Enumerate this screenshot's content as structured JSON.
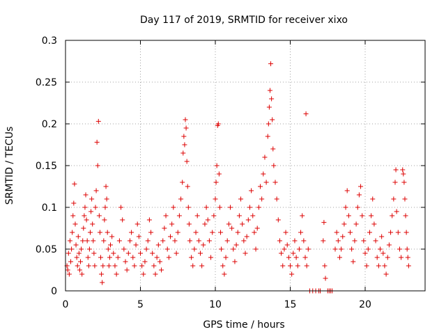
{
  "chart_data": {
    "type": "scatter",
    "title": "Day 117 of 2019, SRMTID for receiver xixo",
    "xlabel": "GPS time / hours",
    "ylabel": "SRMTID / TECUs",
    "xlim": [
      0,
      24
    ],
    "ylim": [
      0,
      0.3
    ],
    "x_ticks": [
      0,
      5,
      10,
      15,
      20
    ],
    "x_tick_labels": [
      "0",
      "5",
      "10",
      "15",
      "20"
    ],
    "y_ticks": [
      0,
      0.05,
      0.1,
      0.15,
      0.2,
      0.25,
      0.3
    ],
    "y_tick_labels": [
      "0",
      "0.05",
      "0.1",
      "0.15",
      "0.2",
      "0.25",
      "0.3"
    ],
    "grid": true,
    "marker": "+",
    "color": "#dd0000",
    "series": [
      {
        "name": "SRMTID",
        "points": [
          [
            0.1,
            0.03
          ],
          [
            0.15,
            0.025
          ],
          [
            0.2,
            0.045
          ],
          [
            0.25,
            0.02
          ],
          [
            0.3,
            0.06
          ],
          [
            0.35,
            0.035
          ],
          [
            0.4,
            0.05
          ],
          [
            0.45,
            0.07
          ],
          [
            0.5,
            0.09
          ],
          [
            0.55,
            0.105
          ],
          [
            0.6,
            0.128
          ],
          [
            0.65,
            0.08
          ],
          [
            0.7,
            0.055
          ],
          [
            0.75,
            0.04
          ],
          [
            0.8,
            0.03
          ],
          [
            0.85,
            0.065
          ],
          [
            0.9,
            0.045
          ],
          [
            0.95,
            0.025
          ],
          [
            1.0,
            0.035
          ],
          [
            1.05,
            0.05
          ],
          [
            1.1,
            0.02
          ],
          [
            1.15,
            0.06
          ],
          [
            1.2,
            0.075
          ],
          [
            1.25,
            0.09
          ],
          [
            1.3,
            0.1
          ],
          [
            1.35,
            0.115
          ],
          [
            1.4,
            0.085
          ],
          [
            1.45,
            0.06
          ],
          [
            1.5,
            0.04
          ],
          [
            1.55,
            0.03
          ],
          [
            1.6,
            0.05
          ],
          [
            1.65,
            0.07
          ],
          [
            1.7,
            0.095
          ],
          [
            1.75,
            0.11
          ],
          [
            1.8,
            0.08
          ],
          [
            1.85,
            0.06
          ],
          [
            1.9,
            0.045
          ],
          [
            1.95,
            0.03
          ],
          [
            2.0,
            0.1
          ],
          [
            2.05,
            0.12
          ],
          [
            2.1,
            0.178
          ],
          [
            2.15,
            0.15
          ],
          [
            2.2,
            0.203
          ],
          [
            2.25,
            0.09
          ],
          [
            2.3,
            0.07
          ],
          [
            2.35,
            0.04
          ],
          [
            2.4,
            0.02
          ],
          [
            2.45,
            0.01
          ],
          [
            2.5,
            0.03
          ],
          [
            2.55,
            0.06
          ],
          [
            2.6,
            0.085
          ],
          [
            2.65,
            0.1
          ],
          [
            2.7,
            0.125
          ],
          [
            2.75,
            0.11
          ],
          [
            2.8,
            0.07
          ],
          [
            2.85,
            0.05
          ],
          [
            2.9,
            0.03
          ],
          [
            2.95,
            0.04
          ],
          [
            3.0,
            0.055
          ],
          [
            3.1,
            0.065
          ],
          [
            3.2,
            0.045
          ],
          [
            3.3,
            0.03
          ],
          [
            3.4,
            0.02
          ],
          [
            3.5,
            0.04
          ],
          [
            3.6,
            0.06
          ],
          [
            3.7,
            0.1
          ],
          [
            3.8,
            0.085
          ],
          [
            3.9,
            0.05
          ],
          [
            4.0,
            0.035
          ],
          [
            4.1,
            0.025
          ],
          [
            4.2,
            0.045
          ],
          [
            4.3,
            0.06
          ],
          [
            4.4,
            0.07
          ],
          [
            4.5,
            0.04
          ],
          [
            4.6,
            0.03
          ],
          [
            4.7,
            0.055
          ],
          [
            4.8,
            0.08
          ],
          [
            4.9,
            0.065
          ],
          [
            5.0,
            0.045
          ],
          [
            5.1,
            0.03
          ],
          [
            5.2,
            0.02
          ],
          [
            5.3,
            0.035
          ],
          [
            5.4,
            0.05
          ],
          [
            5.5,
            0.06
          ],
          [
            5.6,
            0.085
          ],
          [
            5.7,
            0.07
          ],
          [
            5.8,
            0.045
          ],
          [
            5.9,
            0.03
          ],
          [
            6.0,
            0.02
          ],
          [
            6.1,
            0.04
          ],
          [
            6.2,
            0.055
          ],
          [
            6.3,
            0.035
          ],
          [
            6.4,
            0.025
          ],
          [
            6.5,
            0.06
          ],
          [
            6.6,
            0.075
          ],
          [
            6.7,
            0.09
          ],
          [
            6.8,
            0.05
          ],
          [
            6.9,
            0.04
          ],
          [
            7.0,
            0.065
          ],
          [
            7.1,
            0.08
          ],
          [
            7.2,
            0.1
          ],
          [
            7.3,
            0.06
          ],
          [
            7.4,
            0.045
          ],
          [
            7.5,
            0.07
          ],
          [
            7.6,
            0.09
          ],
          [
            7.7,
            0.11
          ],
          [
            7.8,
            0.13
          ],
          [
            7.85,
            0.165
          ],
          [
            7.9,
            0.185
          ],
          [
            7.95,
            0.175
          ],
          [
            8.0,
            0.205
          ],
          [
            8.05,
            0.195
          ],
          [
            8.1,
            0.155
          ],
          [
            8.15,
            0.125
          ],
          [
            8.2,
            0.1
          ],
          [
            8.25,
            0.08
          ],
          [
            8.3,
            0.06
          ],
          [
            8.4,
            0.04
          ],
          [
            8.5,
            0.03
          ],
          [
            8.6,
            0.05
          ],
          [
            8.7,
            0.07
          ],
          [
            8.8,
            0.09
          ],
          [
            8.9,
            0.06
          ],
          [
            9.0,
            0.045
          ],
          [
            9.1,
            0.03
          ],
          [
            9.2,
            0.055
          ],
          [
            9.3,
            0.08
          ],
          [
            9.4,
            0.1
          ],
          [
            9.5,
            0.085
          ],
          [
            9.6,
            0.06
          ],
          [
            9.7,
            0.04
          ],
          [
            9.8,
            0.07
          ],
          [
            9.9,
            0.09
          ],
          [
            10.0,
            0.11
          ],
          [
            10.05,
            0.13
          ],
          [
            10.1,
            0.15
          ],
          [
            10.15,
            0.198
          ],
          [
            10.2,
            0.2
          ],
          [
            10.25,
            0.14
          ],
          [
            10.3,
            0.1
          ],
          [
            10.35,
            0.07
          ],
          [
            10.4,
            0.05
          ],
          [
            10.5,
            0.03
          ],
          [
            10.6,
            0.02
          ],
          [
            10.7,
            0.04
          ],
          [
            10.8,
            0.06
          ],
          [
            10.9,
            0.08
          ],
          [
            11.0,
            0.1
          ],
          [
            11.1,
            0.075
          ],
          [
            11.2,
            0.05
          ],
          [
            11.3,
            0.035
          ],
          [
            11.4,
            0.055
          ],
          [
            11.5,
            0.07
          ],
          [
            11.6,
            0.09
          ],
          [
            11.7,
            0.11
          ],
          [
            11.8,
            0.08
          ],
          [
            11.9,
            0.06
          ],
          [
            12.0,
            0.045
          ],
          [
            12.1,
            0.065
          ],
          [
            12.2,
            0.085
          ],
          [
            12.3,
            0.1
          ],
          [
            12.4,
            0.12
          ],
          [
            12.5,
            0.09
          ],
          [
            12.6,
            0.07
          ],
          [
            12.7,
            0.05
          ],
          [
            12.8,
            0.075
          ],
          [
            12.9,
            0.1
          ],
          [
            13.0,
            0.125
          ],
          [
            13.1,
            0.11
          ],
          [
            13.2,
            0.14
          ],
          [
            13.3,
            0.16
          ],
          [
            13.4,
            0.13
          ],
          [
            13.5,
            0.185
          ],
          [
            13.55,
            0.2
          ],
          [
            13.6,
            0.22
          ],
          [
            13.65,
            0.24
          ],
          [
            13.7,
            0.272
          ],
          [
            13.75,
            0.23
          ],
          [
            13.8,
            0.205
          ],
          [
            13.85,
            0.17
          ],
          [
            13.9,
            0.15
          ],
          [
            14.0,
            0.13
          ],
          [
            14.1,
            0.11
          ],
          [
            14.2,
            0.085
          ],
          [
            14.3,
            0.06
          ],
          [
            14.4,
            0.045
          ],
          [
            14.5,
            0.03
          ],
          [
            14.6,
            0.05
          ],
          [
            14.7,
            0.07
          ],
          [
            14.8,
            0.055
          ],
          [
            14.9,
            0.04
          ],
          [
            15.0,
            0.03
          ],
          [
            15.1,
            0.02
          ],
          [
            15.2,
            0.045
          ],
          [
            15.3,
            0.06
          ],
          [
            15.4,
            0.04
          ],
          [
            15.5,
            0.03
          ],
          [
            15.6,
            0.05
          ],
          [
            15.7,
            0.07
          ],
          [
            15.8,
            0.09
          ],
          [
            15.9,
            0.06
          ],
          [
            16.0,
            0.04
          ],
          [
            16.05,
            0.212
          ],
          [
            16.1,
            0.03
          ],
          [
            16.2,
            0.05
          ],
          [
            16.3,
            0.0
          ],
          [
            16.5,
            0.0
          ],
          [
            16.7,
            0.0
          ],
          [
            16.9,
            0.0
          ],
          [
            17.0,
            0.0
          ],
          [
            17.2,
            0.06
          ],
          [
            17.25,
            0.082
          ],
          [
            17.3,
            0.03
          ],
          [
            17.35,
            0.015
          ],
          [
            17.5,
            0.0
          ],
          [
            17.6,
            0.0
          ],
          [
            17.7,
            0.0
          ],
          [
            17.8,
            0.0
          ],
          [
            18.0,
            0.05
          ],
          [
            18.1,
            0.07
          ],
          [
            18.2,
            0.06
          ],
          [
            18.3,
            0.04
          ],
          [
            18.4,
            0.05
          ],
          [
            18.5,
            0.065
          ],
          [
            18.6,
            0.08
          ],
          [
            18.7,
            0.1
          ],
          [
            18.8,
            0.12
          ],
          [
            18.9,
            0.09
          ],
          [
            19.0,
            0.07
          ],
          [
            19.1,
            0.05
          ],
          [
            19.2,
            0.035
          ],
          [
            19.3,
            0.06
          ],
          [
            19.4,
            0.08
          ],
          [
            19.5,
            0.1
          ],
          [
            19.6,
            0.115
          ],
          [
            19.7,
            0.125
          ],
          [
            19.8,
            0.09
          ],
          [
            19.9,
            0.06
          ],
          [
            20.0,
            0.045
          ],
          [
            20.1,
            0.03
          ],
          [
            20.2,
            0.05
          ],
          [
            20.3,
            0.07
          ],
          [
            20.4,
            0.09
          ],
          [
            20.5,
            0.11
          ],
          [
            20.6,
            0.08
          ],
          [
            20.7,
            0.06
          ],
          [
            20.8,
            0.04
          ],
          [
            20.9,
            0.03
          ],
          [
            21.0,
            0.05
          ],
          [
            21.1,
            0.065
          ],
          [
            21.2,
            0.045
          ],
          [
            21.3,
            0.03
          ],
          [
            21.4,
            0.02
          ],
          [
            21.5,
            0.04
          ],
          [
            21.6,
            0.055
          ],
          [
            21.7,
            0.07
          ],
          [
            21.8,
            0.09
          ],
          [
            21.9,
            0.11
          ],
          [
            22.0,
            0.13
          ],
          [
            22.05,
            0.145
          ],
          [
            22.1,
            0.095
          ],
          [
            22.2,
            0.07
          ],
          [
            22.3,
            0.05
          ],
          [
            22.4,
            0.04
          ],
          [
            22.5,
            0.145
          ],
          [
            22.55,
            0.14
          ],
          [
            22.6,
            0.13
          ],
          [
            22.65,
            0.11
          ],
          [
            22.7,
            0.09
          ],
          [
            22.75,
            0.07
          ],
          [
            22.8,
            0.05
          ],
          [
            22.85,
            0.04
          ],
          [
            22.9,
            0.03
          ]
        ]
      }
    ]
  }
}
